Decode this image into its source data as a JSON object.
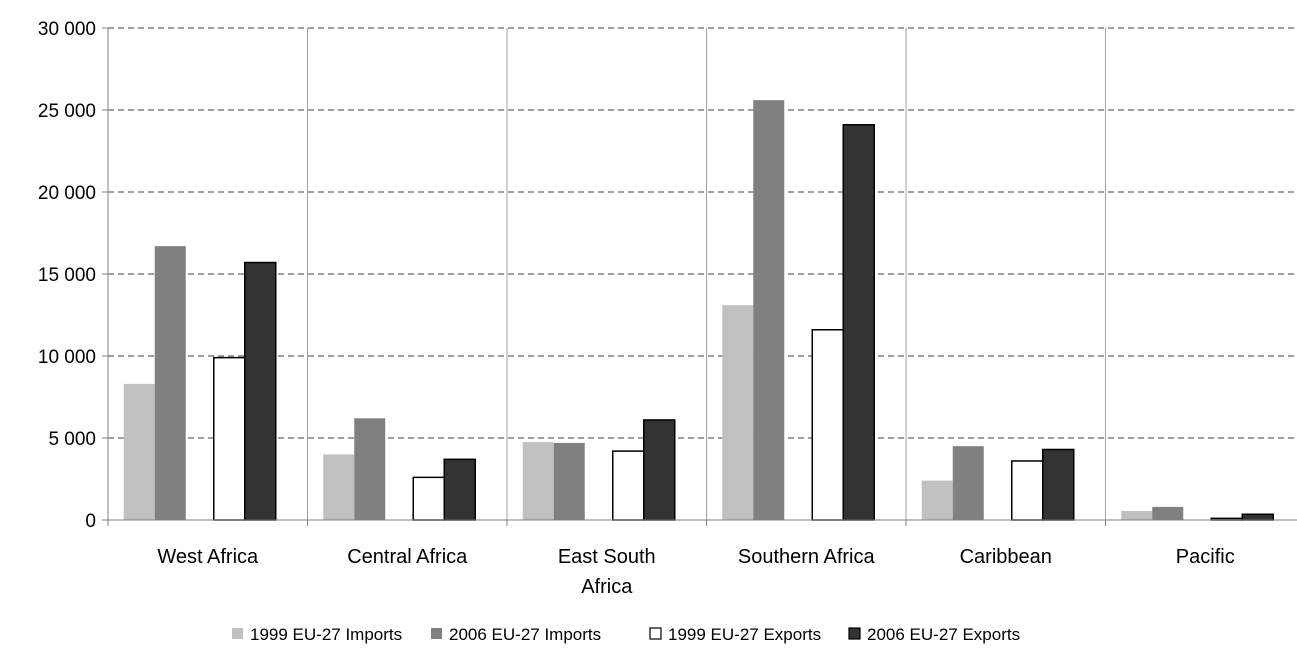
{
  "chart_data": {
    "type": "bar",
    "categories": [
      "West Africa",
      "Central Africa",
      "East South Africa",
      "Southern Africa",
      "Caribbean",
      "Pacific"
    ],
    "category_label_lines": [
      [
        "West Africa"
      ],
      [
        "Central Africa"
      ],
      [
        "East South",
        "Africa"
      ],
      [
        "Southern Africa"
      ],
      [
        "Caribbean"
      ],
      [
        "Pacific"
      ]
    ],
    "series": [
      {
        "name": "1999 EU-27 Imports",
        "color": "#c0c0c0",
        "outlined": false,
        "values": [
          8300,
          4000,
          4750,
          13100,
          2400,
          550
        ]
      },
      {
        "name": "2006 EU-27 Imports",
        "color": "#808080",
        "outlined": false,
        "values": [
          16700,
          6200,
          4700,
          25600,
          4500,
          800
        ]
      },
      {
        "name": "1999 EU-27 Exports",
        "color": "#ffffff",
        "outlined": true,
        "values": [
          9900,
          2600,
          4200,
          11600,
          3600,
          100
        ]
      },
      {
        "name": "2006 EU-27 Exports",
        "color": "#333333",
        "outlined": true,
        "values": [
          15700,
          3700,
          6100,
          24100,
          4300,
          350
        ]
      }
    ],
    "yticks": [
      0,
      5000,
      10000,
      15000,
      20000,
      25000,
      30000
    ],
    "ytick_labels": [
      "0",
      "5 000",
      "10 000",
      "15 000",
      "20 000",
      "25 000",
      "30 000"
    ],
    "ylim": [
      0,
      30000
    ],
    "title": "",
    "xlabel": "",
    "ylabel": "",
    "grid": "horizontal dashed",
    "legend_position": "bottom"
  }
}
